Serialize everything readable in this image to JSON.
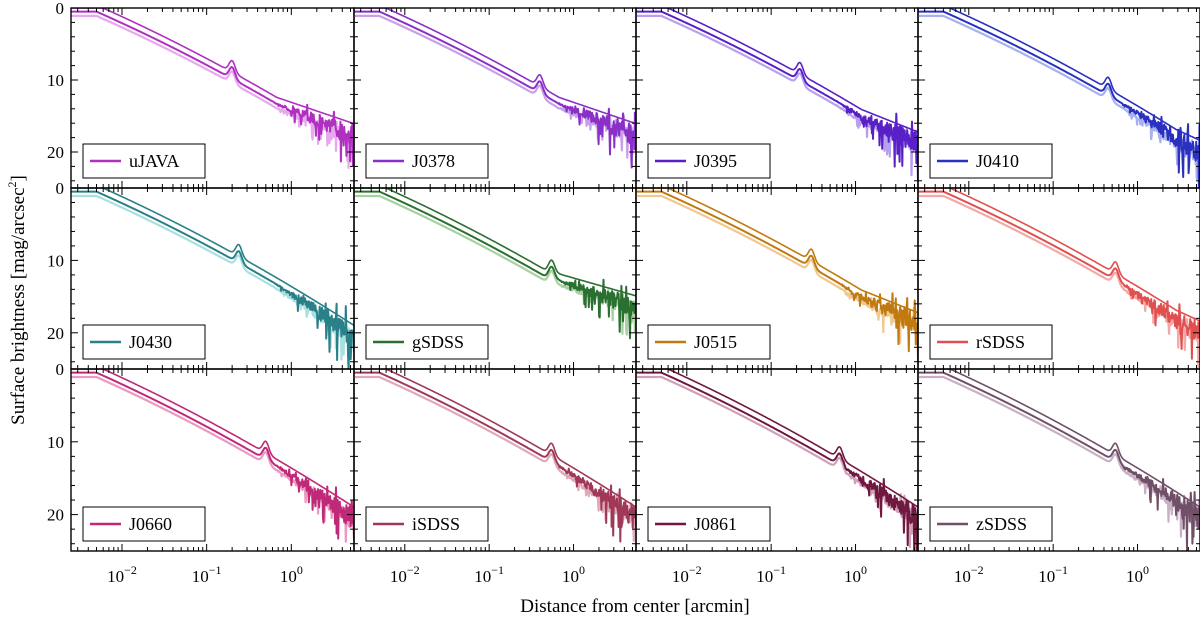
{
  "chart_data": {
    "type": "line",
    "layout": "3x4 grid of panels",
    "ylabel_main": "Surface brightness [mag/arcsec",
    "ylabel_sup": "2",
    "ylabel_close": "]",
    "xlabel": "Distance from center [arcmin]",
    "x_scale": "log",
    "xlim": [
      0.0025,
      5.5
    ],
    "ylim": [
      25,
      0
    ],
    "x_ticks": [
      {
        "value": 0.01,
        "base": "10",
        "exp": "−2"
      },
      {
        "value": 0.1,
        "base": "10",
        "exp": "−1"
      },
      {
        "value": 1,
        "base": "10",
        "exp": "0"
      }
    ],
    "y_ticks": [
      {
        "value": 0,
        "label": "0"
      },
      {
        "value": 10,
        "label": "10"
      },
      {
        "value": 20,
        "label": "20"
      }
    ],
    "legend_position": "lower-left",
    "series_per_panel": 3,
    "panels": [
      {
        "filter": "uJAVA",
        "color": "#b030c0",
        "light": "#e8a8f0",
        "bump": 0.2,
        "tail": 16
      },
      {
        "filter": "J0378",
        "color": "#8a30c8",
        "light": "#c8a0e8",
        "bump": 0.4,
        "tail": 16
      },
      {
        "filter": "J0395",
        "color": "#5a20c8",
        "light": "#b8a0f0",
        "bump": 0.22,
        "tail": 17
      },
      {
        "filter": "J0410",
        "color": "#2a30c0",
        "light": "#a8b0f0",
        "bump": 0.45,
        "tail": 18
      },
      {
        "filter": "J0430",
        "color": "#2a8088",
        "light": "#a8e0e0",
        "bump": 0.24,
        "tail": 19
      },
      {
        "filter": "gSDSS",
        "color": "#2a7030",
        "light": "#a8d0a0",
        "bump": 0.55,
        "tail": 15
      },
      {
        "filter": "J0515",
        "color": "#c07a10",
        "light": "#f0c890",
        "bump": 0.3,
        "tail": 17
      },
      {
        "filter": "rSDSS",
        "color": "#e05050",
        "light": "#f4a8a8",
        "bump": 0.55,
        "tail": 18
      },
      {
        "filter": "J0660",
        "color": "#c02878",
        "light": "#ec98c0",
        "bump": 0.5,
        "tail": 19
      },
      {
        "filter": "iSDSS",
        "color": "#a03858",
        "light": "#e0a8b8",
        "bump": 0.55,
        "tail": 19
      },
      {
        "filter": "J0861",
        "color": "#701840",
        "light": "#d0a0b8",
        "bump": 0.65,
        "tail": 20
      },
      {
        "filter": "zSDSS",
        "color": "#705068",
        "light": "#c8b0c4",
        "bump": 0.55,
        "tail": 19
      }
    ]
  }
}
